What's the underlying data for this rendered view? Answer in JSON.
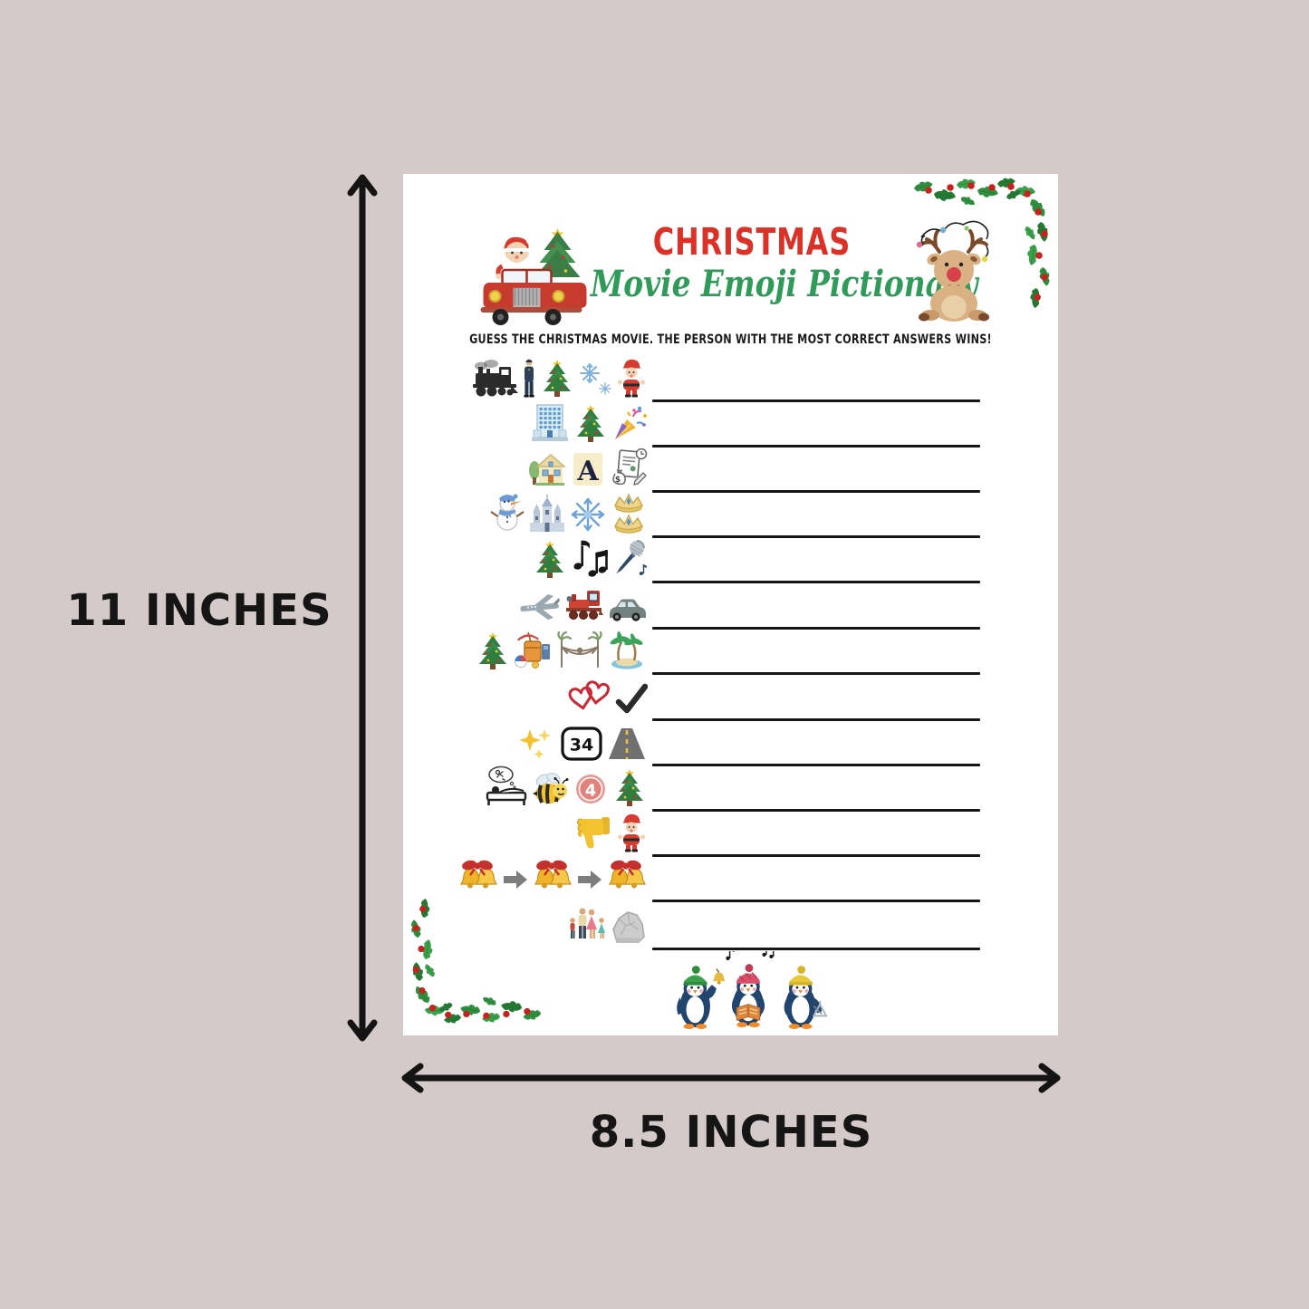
{
  "background_color": "#d5caca",
  "dimensions": {
    "height_label": "11 INCHES",
    "width_label": "8.5 INCHES",
    "arrow_color": "#141414"
  },
  "page": {
    "title_line1": "CHRISTMAS",
    "title_line2": "Movie Emoji Pictionary",
    "title_line1_color": "#dc3126",
    "title_line2_color": "#2e9b58",
    "instructions": "GUESS THE CHRISTMAS MOVIE. THE PERSON WITH THE MOST CORRECT ANSWERS WINS!",
    "answer_line_color": "#161616",
    "icon_texts": {
      "letter_a": "A",
      "sign_34": "34",
      "number_4": "4",
      "money": "$"
    },
    "decorations": [
      {
        "name": "santa-truck"
      },
      {
        "name": "reindeer-with-lights"
      },
      {
        "name": "holly-corner-top-right"
      },
      {
        "name": "holly-corner-bottom-left"
      },
      {
        "name": "caroling-penguins"
      }
    ],
    "rows": [
      {
        "icons": [
          "steam-train",
          "conductor",
          "christmas-tree",
          "snowflakes",
          "santa"
        ]
      },
      {
        "icons": [
          "office-building",
          "christmas-tree",
          "party-popper"
        ]
      },
      {
        "icons": [
          "house",
          "letter-a",
          "loan-document"
        ]
      },
      {
        "icons": [
          "snowman",
          "castle",
          "snowflake",
          "tiaras"
        ]
      },
      {
        "icons": [
          "christmas-tree",
          "music-notes",
          "microphone"
        ]
      },
      {
        "icons": [
          "airplane",
          "toy-train",
          "car"
        ]
      },
      {
        "icons": [
          "christmas-tree",
          "beach-luggage",
          "hammock",
          "palm-island"
        ]
      },
      {
        "icons": [
          "two-hearts",
          "checkmark"
        ]
      },
      {
        "icons": [
          "sparkles",
          "sign-34",
          "road"
        ]
      },
      {
        "icons": [
          "dreaming-in-bed",
          "bee",
          "number-4",
          "christmas-tree"
        ]
      },
      {
        "icons": [
          "thumbs-down",
          "santa"
        ]
      },
      {
        "icons": [
          "bells",
          "arrow-right",
          "bells",
          "arrow-right",
          "bells"
        ]
      },
      {
        "icons": [
          "family",
          "rock"
        ]
      }
    ]
  }
}
